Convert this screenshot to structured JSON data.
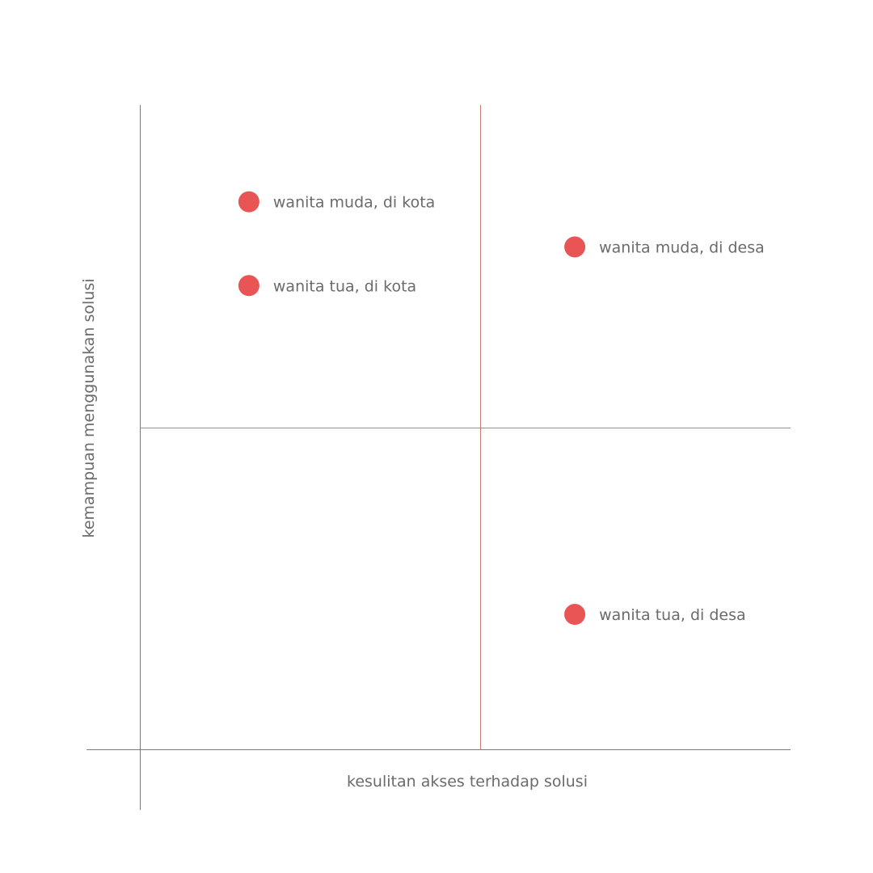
{
  "chart_data": {
    "type": "scatter",
    "title": "",
    "xlabel": "kesulitan akses terhadap solusi",
    "ylabel": "kemampuan menggunakan solusi",
    "xlim": [
      0,
      10
    ],
    "ylim": [
      0,
      10
    ],
    "grid": false,
    "quadrant_dividers": {
      "x": 5,
      "y": 5
    },
    "marker_color": "#e95454",
    "axis_color": "#7a7a7a",
    "divider_color": "#c97b6e",
    "points": [
      {
        "label": "wanita muda, di kota",
        "x": 1.6,
        "y": 8.5
      },
      {
        "label": "wanita tua, di kota",
        "x": 1.6,
        "y": 7.2
      },
      {
        "label": "wanita muda, di desa",
        "x": 6.4,
        "y": 7.8
      },
      {
        "label": "wanita tua, di desa",
        "x": 6.4,
        "y": 2.1
      }
    ]
  }
}
